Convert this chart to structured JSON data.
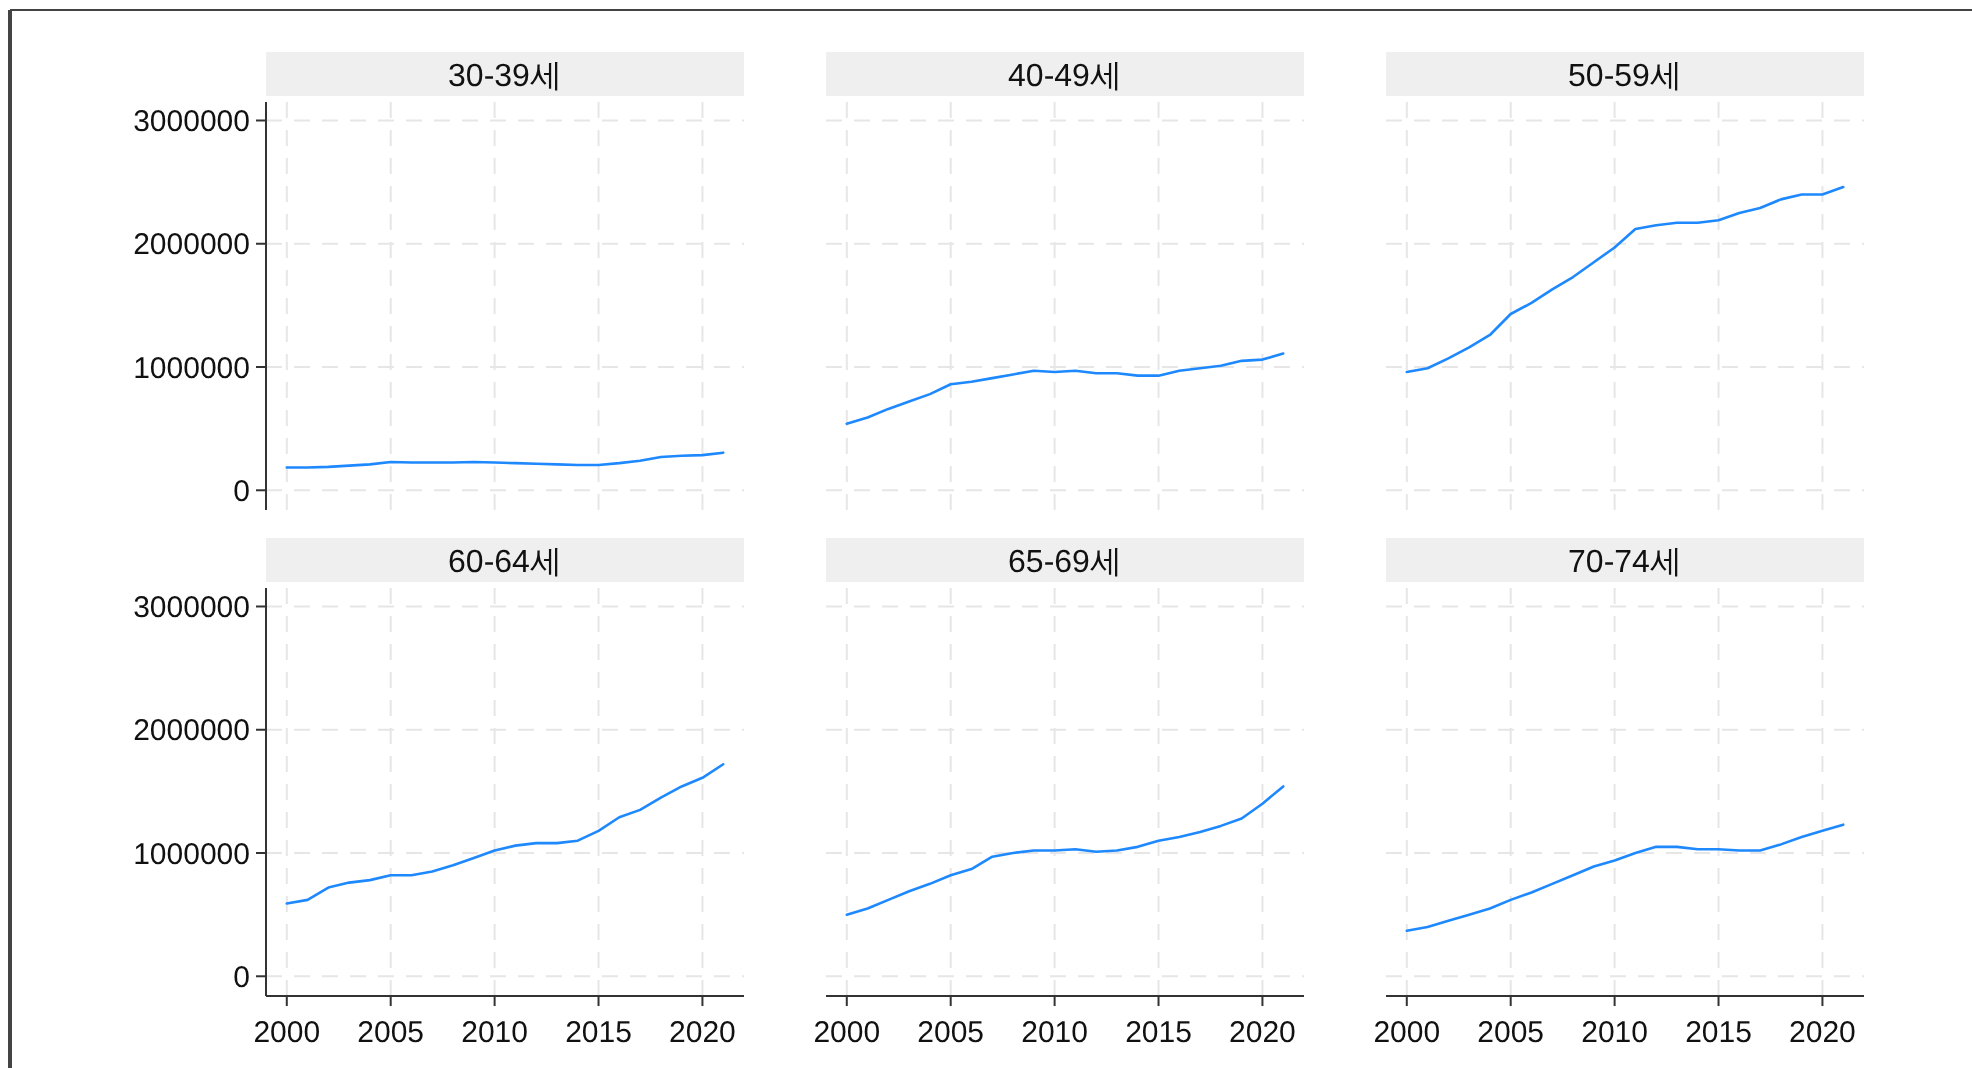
{
  "chart_data": [
    {
      "type": "line",
      "title": "30-39세",
      "x": [
        2000,
        2001,
        2002,
        2003,
        2004,
        2005,
        2006,
        2007,
        2008,
        2009,
        2010,
        2011,
        2012,
        2013,
        2014,
        2015,
        2016,
        2017,
        2018,
        2019,
        2020,
        2021
      ],
      "series": [
        {
          "color": "#1e88ff",
          "values": [
            185000,
            185000,
            190000,
            200000,
            210000,
            230000,
            225000,
            225000,
            225000,
            230000,
            225000,
            220000,
            215000,
            210000,
            205000,
            205000,
            220000,
            240000,
            270000,
            280000,
            285000,
            305000
          ]
        }
      ],
      "xlim": [
        1999,
        2022
      ],
      "ylim": [
        -160000,
        3150000
      ],
      "xticks": [
        2000,
        2005,
        2010,
        2015,
        2020
      ],
      "yticks": [
        0,
        1000000,
        2000000,
        3000000
      ],
      "grid": true,
      "tick_labels": "y"
    },
    {
      "type": "line",
      "title": "40-49세",
      "x": [
        2000,
        2001,
        2002,
        2003,
        2004,
        2005,
        2006,
        2007,
        2008,
        2009,
        2010,
        2011,
        2012,
        2013,
        2014,
        2015,
        2016,
        2017,
        2018,
        2019,
        2020,
        2021
      ],
      "series": [
        {
          "color": "#1e88ff",
          "values": [
            540000,
            590000,
            660000,
            720000,
            780000,
            860000,
            880000,
            910000,
            940000,
            970000,
            960000,
            970000,
            950000,
            950000,
            930000,
            930000,
            970000,
            990000,
            1010000,
            1050000,
            1060000,
            1110000
          ]
        }
      ],
      "xlim": [
        1999,
        2022
      ],
      "ylim": [
        -160000,
        3150000
      ],
      "xticks": [
        2000,
        2005,
        2010,
        2015,
        2020
      ],
      "yticks": [
        0,
        1000000,
        2000000,
        3000000
      ],
      "grid": true,
      "tick_labels": false
    },
    {
      "type": "line",
      "title": "50-59세",
      "x": [
        2000,
        2001,
        2002,
        2003,
        2004,
        2005,
        2006,
        2007,
        2008,
        2009,
        2010,
        2011,
        2012,
        2013,
        2014,
        2015,
        2016,
        2017,
        2018,
        2019,
        2020,
        2021
      ],
      "series": [
        {
          "color": "#1e88ff",
          "values": [
            960000,
            990000,
            1070000,
            1160000,
            1260000,
            1430000,
            1520000,
            1630000,
            1730000,
            1850000,
            1970000,
            2120000,
            2150000,
            2170000,
            2170000,
            2190000,
            2250000,
            2290000,
            2360000,
            2400000,
            2400000,
            2460000
          ]
        }
      ],
      "xlim": [
        1999,
        2022
      ],
      "ylim": [
        -160000,
        3150000
      ],
      "xticks": [
        2000,
        2005,
        2010,
        2015,
        2020
      ],
      "yticks": [
        0,
        1000000,
        2000000,
        3000000
      ],
      "grid": true,
      "tick_labels": false
    },
    {
      "type": "line",
      "title": "60-64세",
      "x": [
        2000,
        2001,
        2002,
        2003,
        2004,
        2005,
        2006,
        2007,
        2008,
        2009,
        2010,
        2011,
        2012,
        2013,
        2014,
        2015,
        2016,
        2017,
        2018,
        2019,
        2020,
        2021
      ],
      "series": [
        {
          "color": "#1e88ff",
          "values": [
            590000,
            620000,
            720000,
            760000,
            780000,
            820000,
            820000,
            850000,
            900000,
            960000,
            1020000,
            1060000,
            1080000,
            1080000,
            1100000,
            1180000,
            1290000,
            1350000,
            1450000,
            1540000,
            1610000,
            1720000
          ]
        }
      ],
      "xlim": [
        1999,
        2022
      ],
      "ylim": [
        -160000,
        3150000
      ],
      "xticks": [
        2000,
        2005,
        2010,
        2015,
        2020
      ],
      "yticks": [
        0,
        1000000,
        2000000,
        3000000
      ],
      "grid": true
    },
    {
      "type": "line",
      "title": "65-69세",
      "x": [
        2000,
        2001,
        2002,
        2003,
        2004,
        2005,
        2006,
        2007,
        2008,
        2009,
        2010,
        2011,
        2012,
        2013,
        2014,
        2015,
        2016,
        2017,
        2018,
        2019,
        2020,
        2021
      ],
      "series": [
        {
          "color": "#1e88ff",
          "values": [
            500000,
            550000,
            620000,
            690000,
            750000,
            820000,
            870000,
            970000,
            1000000,
            1020000,
            1020000,
            1030000,
            1010000,
            1020000,
            1050000,
            1100000,
            1130000,
            1170000,
            1220000,
            1280000,
            1400000,
            1540000
          ]
        }
      ],
      "xlim": [
        1999,
        2022
      ],
      "ylim": [
        -160000,
        3150000
      ],
      "xticks": [
        2000,
        2005,
        2010,
        2015,
        2020
      ],
      "yticks": [
        0,
        1000000,
        2000000,
        3000000
      ],
      "grid": true,
      "tick_labels": "x"
    },
    {
      "type": "line",
      "title": "70-74세",
      "x": [
        2000,
        2001,
        2002,
        2003,
        2004,
        2005,
        2006,
        2007,
        2008,
        2009,
        2010,
        2011,
        2012,
        2013,
        2014,
        2015,
        2016,
        2017,
        2018,
        2019,
        2020,
        2021
      ],
      "series": [
        {
          "color": "#1e88ff",
          "values": [
            370000,
            400000,
            450000,
            500000,
            550000,
            620000,
            680000,
            750000,
            820000,
            890000,
            940000,
            1000000,
            1050000,
            1050000,
            1030000,
            1030000,
            1020000,
            1020000,
            1070000,
            1130000,
            1180000,
            1230000
          ]
        }
      ],
      "xlim": [
        1999,
        2022
      ],
      "ylim": [
        -160000,
        3150000
      ],
      "xticks": [
        2000,
        2005,
        2010,
        2015,
        2020
      ],
      "yticks": [
        0,
        1000000,
        2000000,
        3000000
      ],
      "grid": true,
      "tick_labels": "x"
    }
  ]
}
